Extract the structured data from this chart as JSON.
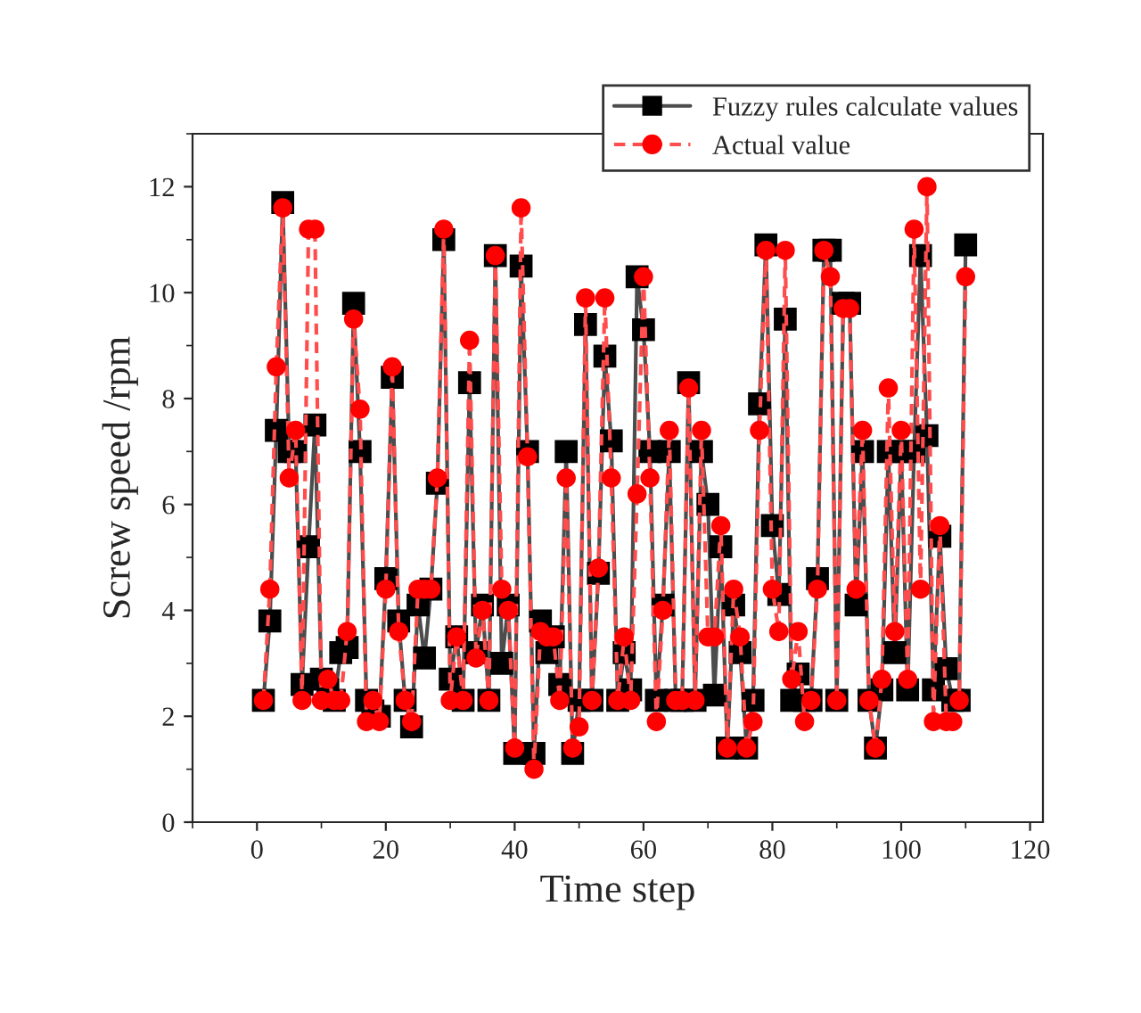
{
  "chart_data": {
    "type": "line",
    "xlabel": "Time step",
    "ylabel": "Screw speed /rpm",
    "x": [
      1,
      2,
      3,
      4,
      5,
      6,
      7,
      8,
      9,
      10,
      11,
      12,
      13,
      14,
      15,
      16,
      17,
      18,
      19,
      20,
      21,
      22,
      23,
      24,
      25,
      26,
      27,
      28,
      29,
      30,
      31,
      32,
      33,
      34,
      35,
      36,
      37,
      38,
      39,
      40,
      41,
      42,
      43,
      44,
      45,
      46,
      47,
      48,
      49,
      50,
      51,
      52,
      53,
      54,
      55,
      56,
      57,
      58,
      59,
      60,
      61,
      62,
      63,
      64,
      65,
      66,
      67,
      68,
      69,
      70,
      71,
      72,
      73,
      74,
      75,
      76,
      77,
      78,
      79,
      80,
      81,
      82,
      83,
      84,
      85,
      86,
      87,
      88,
      89,
      90,
      91,
      92,
      93,
      94,
      95,
      96,
      97,
      98,
      99,
      100,
      101,
      102,
      103,
      104,
      105,
      106,
      107,
      108,
      109,
      110
    ],
    "series": [
      {
        "name": "Fuzzy rules calculate values",
        "color": "#000000",
        "marker": "square",
        "line_style": "solid",
        "values": [
          2.3,
          3.8,
          7.4,
          11.7,
          7.0,
          7.0,
          2.6,
          5.2,
          7.5,
          2.7,
          2.5,
          2.3,
          3.2,
          3.3,
          9.8,
          7.0,
          2.3,
          2.1,
          2.0,
          4.6,
          8.4,
          3.8,
          2.3,
          1.8,
          4.1,
          3.1,
          4.4,
          6.4,
          11.0,
          2.7,
          3.5,
          2.3,
          8.3,
          3.2,
          4.1,
          2.3,
          10.7,
          3.0,
          4.1,
          1.3,
          10.5,
          7.0,
          1.3,
          3.8,
          3.2,
          3.5,
          2.6,
          7.0,
          1.3,
          2.3,
          9.4,
          2.3,
          4.7,
          8.8,
          7.2,
          2.3,
          3.2,
          2.5,
          10.3,
          9.3,
          7.0,
          2.3,
          4.1,
          7.0,
          2.3,
          2.3,
          8.3,
          2.3,
          7.0,
          6.0,
          2.4,
          5.2,
          1.4,
          4.1,
          3.2,
          1.4,
          2.3,
          7.9,
          10.9,
          5.6,
          4.3,
          9.5,
          2.3,
          2.8,
          2.3,
          2.3,
          4.6,
          10.8,
          10.8,
          2.3,
          9.8,
          9.8,
          4.1,
          7.0,
          2.3,
          1.4,
          2.5,
          7.0,
          3.2,
          7.0,
          2.5,
          7.0,
          10.7,
          7.3,
          2.5,
          5.4,
          2.9,
          2.3,
          2.3,
          10.9
        ]
      },
      {
        "name": "Actual value",
        "color": "#ff0000",
        "marker": "circle",
        "line_style": "dashed",
        "values": [
          2.3,
          4.4,
          8.6,
          11.6,
          6.5,
          7.4,
          2.3,
          11.2,
          11.2,
          2.3,
          2.7,
          2.3,
          2.3,
          3.6,
          9.5,
          7.8,
          1.9,
          2.3,
          1.9,
          4.4,
          8.6,
          3.6,
          2.3,
          1.9,
          4.4,
          4.4,
          4.4,
          6.5,
          11.2,
          2.3,
          3.5,
          2.3,
          9.1,
          3.1,
          4.0,
          2.3,
          10.7,
          4.4,
          4.0,
          1.4,
          11.6,
          6.9,
          1.0,
          3.6,
          3.5,
          3.5,
          2.3,
          6.5,
          1.4,
          1.8,
          9.9,
          2.3,
          4.8,
          9.9,
          6.5,
          2.3,
          3.5,
          2.3,
          6.2,
          10.3,
          6.5,
          1.9,
          4.0,
          7.4,
          2.3,
          2.3,
          8.2,
          2.3,
          7.4,
          3.5,
          3.5,
          5.6,
          1.4,
          4.4,
          3.5,
          1.4,
          1.9,
          7.4,
          10.8,
          4.4,
          3.6,
          10.8,
          2.7,
          3.6,
          1.9,
          2.3,
          4.4,
          10.8,
          10.3,
          2.3,
          9.7,
          9.7,
          4.4,
          7.4,
          2.3,
          1.4,
          2.7,
          8.2,
          3.6,
          7.4,
          2.7,
          11.2,
          4.4,
          12.0,
          1.9,
          5.6,
          1.9,
          1.9,
          2.3,
          10.3
        ]
      }
    ],
    "xlim": [
      -10,
      122
    ],
    "xticks": [
      0,
      20,
      40,
      60,
      80,
      100,
      120
    ],
    "ylim": [
      0,
      13
    ],
    "yticks": [
      0,
      2,
      4,
      6,
      8,
      10,
      12
    ],
    "grid": false,
    "legend": "top right"
  }
}
